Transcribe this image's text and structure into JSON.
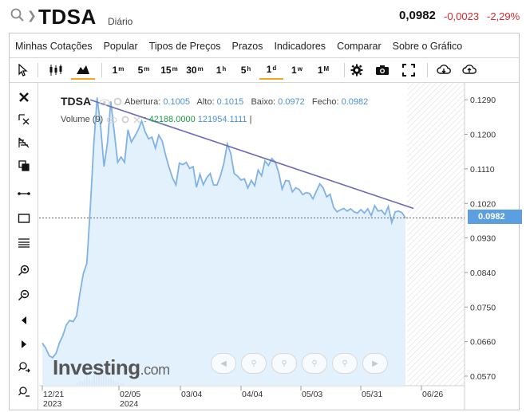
{
  "header": {
    "symbol": "TDSA",
    "period": "Diário",
    "price": "0,0982",
    "change": "-0,0023",
    "change_pct": "-2,29%",
    "icons": [
      "search-icon",
      "chevron-down-icon"
    ]
  },
  "menu": {
    "items": [
      "Minhas Cotações",
      "Popular",
      "Tipos de Preços",
      "Prazos",
      "Indicadores",
      "Comparar",
      "Sobre o Gráfico"
    ]
  },
  "toolbar": {
    "timeframes": [
      {
        "base": "1",
        "sup": "m"
      },
      {
        "base": "5",
        "sup": "m"
      },
      {
        "base": "15",
        "sup": "m"
      },
      {
        "base": "30",
        "sup": "m"
      },
      {
        "base": "1",
        "sup": "h"
      },
      {
        "base": "5",
        "sup": "h"
      },
      {
        "base": "1",
        "sup": "d"
      },
      {
        "base": "1",
        "sup": "w"
      },
      {
        "base": "1",
        "sup": "M"
      }
    ],
    "active_timeframe": "1d",
    "active_chart_type": "area",
    "accent_color": "#f7a51b",
    "icons": [
      "cursor-icon",
      "candlestick-icon",
      "area-chart-icon",
      "gear-icon",
      "camera-icon",
      "fullscreen-icon",
      "cloud-download-icon",
      "cloud-upload-icon"
    ]
  },
  "left_tools": {
    "icons": [
      "close-icon",
      "crosshair-delete-icon",
      "fibonacci-icon",
      "copy-icon",
      "trendline-icon",
      "rectangle-icon",
      "horizontal-lines-icon",
      "zoom-in-icon",
      "zoom-out-icon",
      "scroll-left-icon",
      "scroll-right-icon",
      "zoom-reset-in-icon",
      "zoom-reset-out-icon"
    ]
  },
  "legend": {
    "symbol": "TDSA",
    "open_label": "Abertura:",
    "open": "0.1005",
    "high_label": "Alto:",
    "high": "0.1015",
    "low_label": "Baixo:",
    "low": "0.0972",
    "close_label": "Fecho:",
    "close": "0.0982",
    "volume_label": "Volume (9)",
    "volume_value": "42188.0000",
    "volume_ma": "121954.1111",
    "volume_sep": ":",
    "volume_end": "|"
  },
  "logo": {
    "main": "Investing",
    "suffix": ".com"
  },
  "price_tag": "0.0982",
  "colors": {
    "line": "#7fb2e5",
    "area": "#deeefb",
    "trendline": "#6e6cb5",
    "price_tag": "#5b9fe0",
    "negative": "#d9262e",
    "volume_up": "#1a9a48"
  },
  "chart_data": {
    "type": "area",
    "y_ticks": [
      "0.1290",
      "0.1200",
      "0.1110",
      "0.1020",
      "0.0930",
      "0.0840",
      "0.0750",
      "0.0660",
      "0.0570"
    ],
    "x_ticks": [
      {
        "label": "12/21",
        "sub": "2023"
      },
      {
        "label": "02/05",
        "sub": "2024"
      },
      {
        "label": "03/04",
        "sub": ""
      },
      {
        "label": "04/04",
        "sub": ""
      },
      {
        "label": "05/03",
        "sub": ""
      },
      {
        "label": "05/31",
        "sub": ""
      },
      {
        "label": "06/26",
        "sub": ""
      }
    ],
    "ylim": [
      0.0545,
      0.1305
    ],
    "last_value": 0.0982,
    "values": [
      0.0656,
      0.0643,
      0.0623,
      0.0618,
      0.0629,
      0.0657,
      0.0676,
      0.0703,
      0.0715,
      0.0712,
      0.0727,
      0.0787,
      0.0838,
      0.0864,
      0.1008,
      0.1171,
      0.1296,
      0.1223,
      0.1116,
      0.1177,
      0.1286,
      0.1207,
      0.1127,
      0.1141,
      0.1127,
      0.1212,
      0.118,
      0.1195,
      0.1212,
      0.1235,
      0.1207,
      0.1188,
      0.1193,
      0.1164,
      0.1198,
      0.1183,
      0.1146,
      0.1114,
      0.1087,
      0.1068,
      0.1125,
      0.1121,
      0.1127,
      0.1111,
      0.1116,
      0.1062,
      0.1096,
      0.1069,
      0.1087,
      0.1098,
      0.1068,
      0.1068,
      0.1092,
      0.1125,
      0.1175,
      0.115,
      0.1098,
      0.1091,
      0.1081,
      0.1084,
      0.106,
      0.108,
      0.1066,
      0.1107,
      0.1092,
      0.1131,
      0.1119,
      0.1137,
      0.1128,
      0.11,
      0.1057,
      0.108,
      0.1078,
      0.105,
      0.1061,
      0.1056,
      0.1043,
      0.1048,
      0.1046,
      0.1032,
      0.1052,
      0.1071,
      0.106,
      0.1037,
      0.1044,
      0.101,
      0.0998,
      0.1003,
      0.1007,
      0.1,
      0.1006,
      0.0998,
      0.0995,
      0.1004,
      0.0995,
      0.1006,
      0.0988,
      0.1014,
      0.1,
      0.1002,
      0.0991,
      0.1012,
      0.097,
      0.0998,
      0.1,
      0.0996,
      0.0982
    ],
    "trendline": {
      "from_index": 14,
      "from_value": 0.129,
      "to_index": 106,
      "to_value": 0.1007
    }
  }
}
